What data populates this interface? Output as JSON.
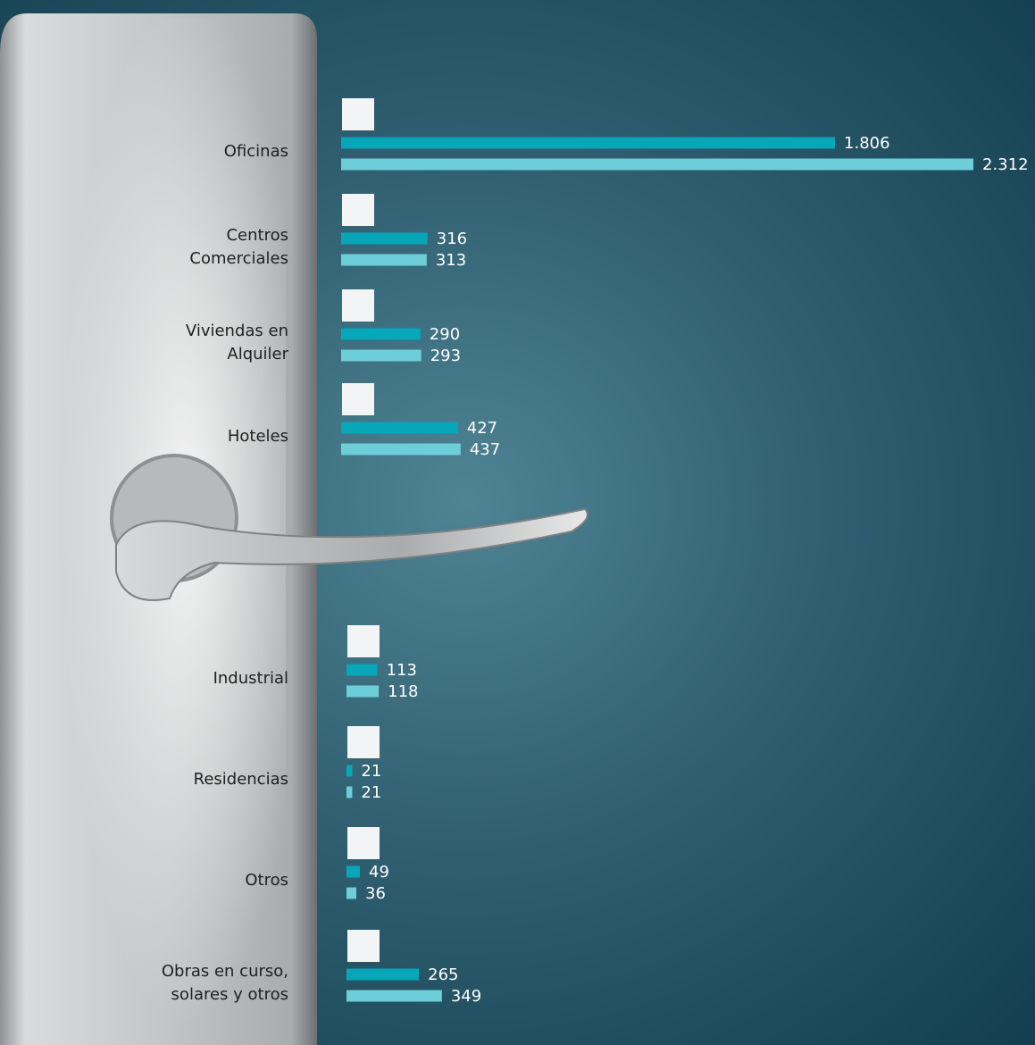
{
  "chart_data": {
    "type": "bar",
    "orientation": "horizontal",
    "categories": [
      "Oficinas",
      "Centros \nComerciales",
      "Viviendas en\nAlquiler",
      "Hoteles",
      "Industrial",
      "Residencias",
      "Otros",
      "Obras en curso,\nsolares y otros"
    ],
    "series": [
      {
        "color": "#07a6b9",
        "values": [
          1806,
          316,
          290,
          427,
          113,
          21,
          49,
          265
        ],
        "value_labels": [
          "1.806",
          "316",
          "290",
          "427",
          "113",
          "21",
          "49",
          "265"
        ]
      },
      {
        "color": "#6dcdd9",
        "values": [
          2312,
          313,
          293,
          437,
          118,
          21,
          36,
          349
        ],
        "value_labels": [
          "2.312",
          "313",
          "293",
          "437",
          "118",
          "21",
          "36",
          "349"
        ]
      }
    ]
  }
}
